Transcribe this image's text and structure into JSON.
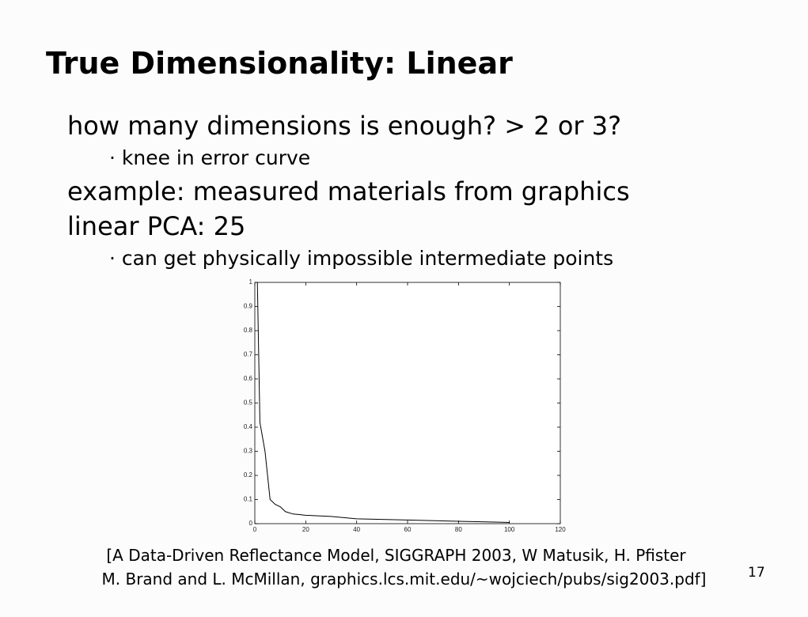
{
  "slide": {
    "title": "True Dimensionality: Linear",
    "bullets": [
      "how many dimensions is enough? > 2 or 3?",
      "· knee in error curve",
      "example: measured materials from graphics",
      "linear PCA: 25",
      "· can get physically impossible intermediate points"
    ],
    "citation": [
      "[A Data-Driven Reflectance Model, SIGGRAPH 2003, W Matusik, H. Pfister",
      "M. Brand and L. McMillan, graphics.lcs.mit.edu/~wojciech/pubs/sig2003.pdf]"
    ],
    "page_number": "17"
  },
  "chart_data": {
    "type": "line",
    "color": "#000000",
    "x": [
      1,
      2,
      4,
      6,
      8,
      10,
      12,
      15,
      20,
      30,
      40,
      60,
      80,
      100
    ],
    "values": [
      1.0,
      0.42,
      0.3,
      0.1,
      0.08,
      0.07,
      0.05,
      0.04,
      0.035,
      0.03,
      0.02,
      0.015,
      0.01,
      0.005
    ],
    "xlim": [
      0,
      120
    ],
    "ylim": [
      0,
      1
    ],
    "xticks": [
      0,
      20,
      40,
      60,
      80,
      100,
      120
    ],
    "yticks": [
      0,
      0.1,
      0.2,
      0.3,
      0.4,
      0.5,
      0.6,
      0.7,
      0.8,
      0.9,
      1
    ]
  }
}
